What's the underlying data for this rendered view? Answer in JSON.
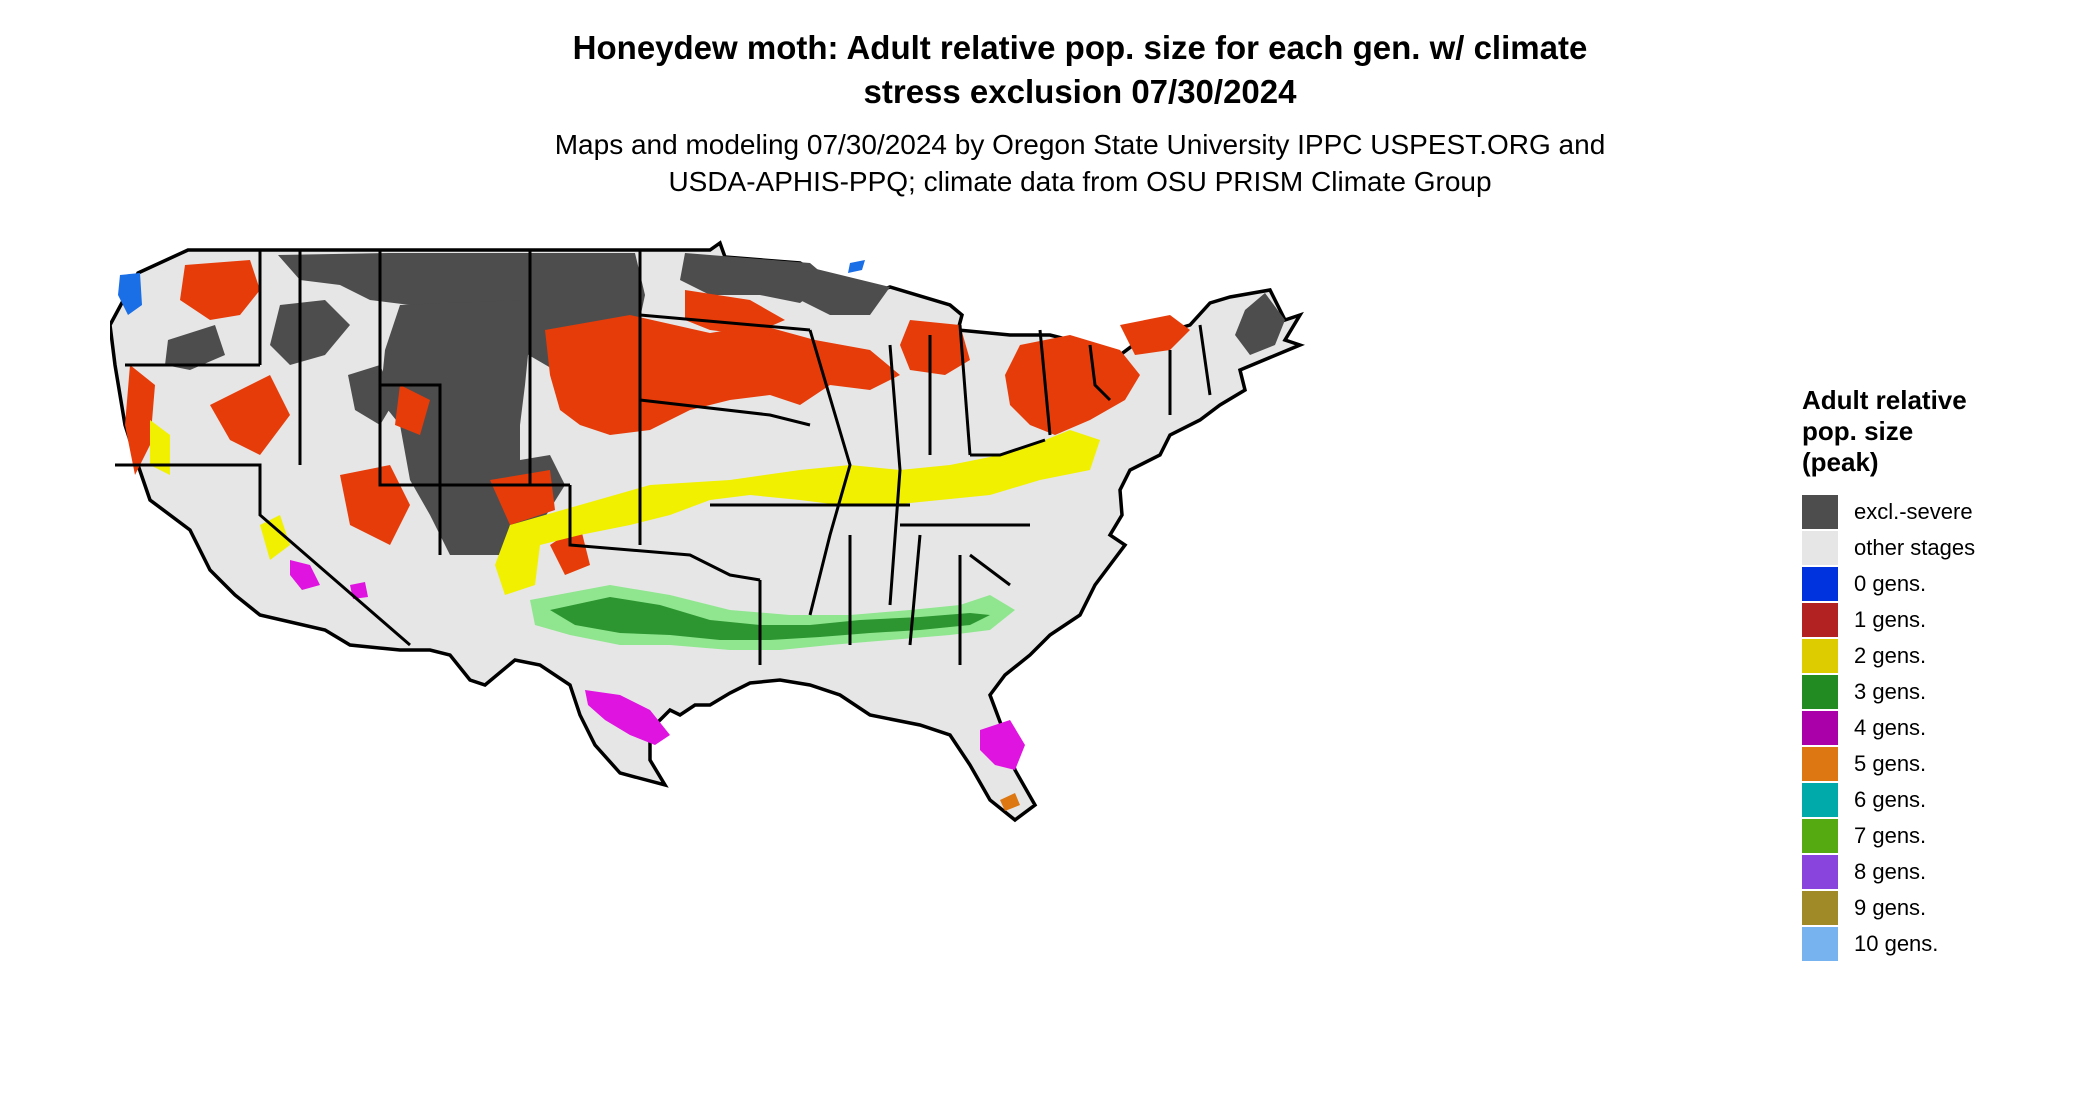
{
  "title": {
    "line1": "Honeydew moth: Adult relative pop. size for each gen. w/ climate",
    "line2": "stress exclusion 07/30/2024"
  },
  "subtitle": {
    "line1": "Maps and modeling 07/30/2024 by Oregon State University IPPC USPEST.ORG and",
    "line2": "USDA-APHIS-PPQ; climate data from OSU PRISM Climate Group"
  },
  "legend": {
    "title_lines": [
      "Adult relative",
      "pop. size",
      "(peak)"
    ],
    "items": [
      {
        "label": "excl.-severe",
        "color": "#4d4d4d"
      },
      {
        "label": "other stages",
        "color": "#e6e6e6"
      },
      {
        "label": "0 gens.",
        "color": "#0033dd"
      },
      {
        "label": "1 gens.",
        "color": "#b22222"
      },
      {
        "label": "2 gens.",
        "color": "#ddcc00"
      },
      {
        "label": "3 gens.",
        "color": "#228b22"
      },
      {
        "label": "4 gens.",
        "color": "#aa00aa"
      },
      {
        "label": "5 gens.",
        "color": "#dd7711"
      },
      {
        "label": "6 gens.",
        "color": "#00aaaa"
      },
      {
        "label": "7 gens.",
        "color": "#55aa11"
      },
      {
        "label": "8 gens.",
        "color": "#8844dd"
      },
      {
        "label": "9 gens.",
        "color": "#a08a28"
      },
      {
        "label": "10 gens.",
        "color": "#77b3ee"
      }
    ]
  },
  "map_colors": {
    "base": "#e6e6e6",
    "excluded": "#4d4d4d",
    "red_orange": "#e63c0a",
    "yellow": "#f0f000",
    "green": "#2d9630",
    "light_green": "#8fe68f",
    "magenta": "#e014e0",
    "blue": "#1a6ee6",
    "border": "#000000"
  }
}
